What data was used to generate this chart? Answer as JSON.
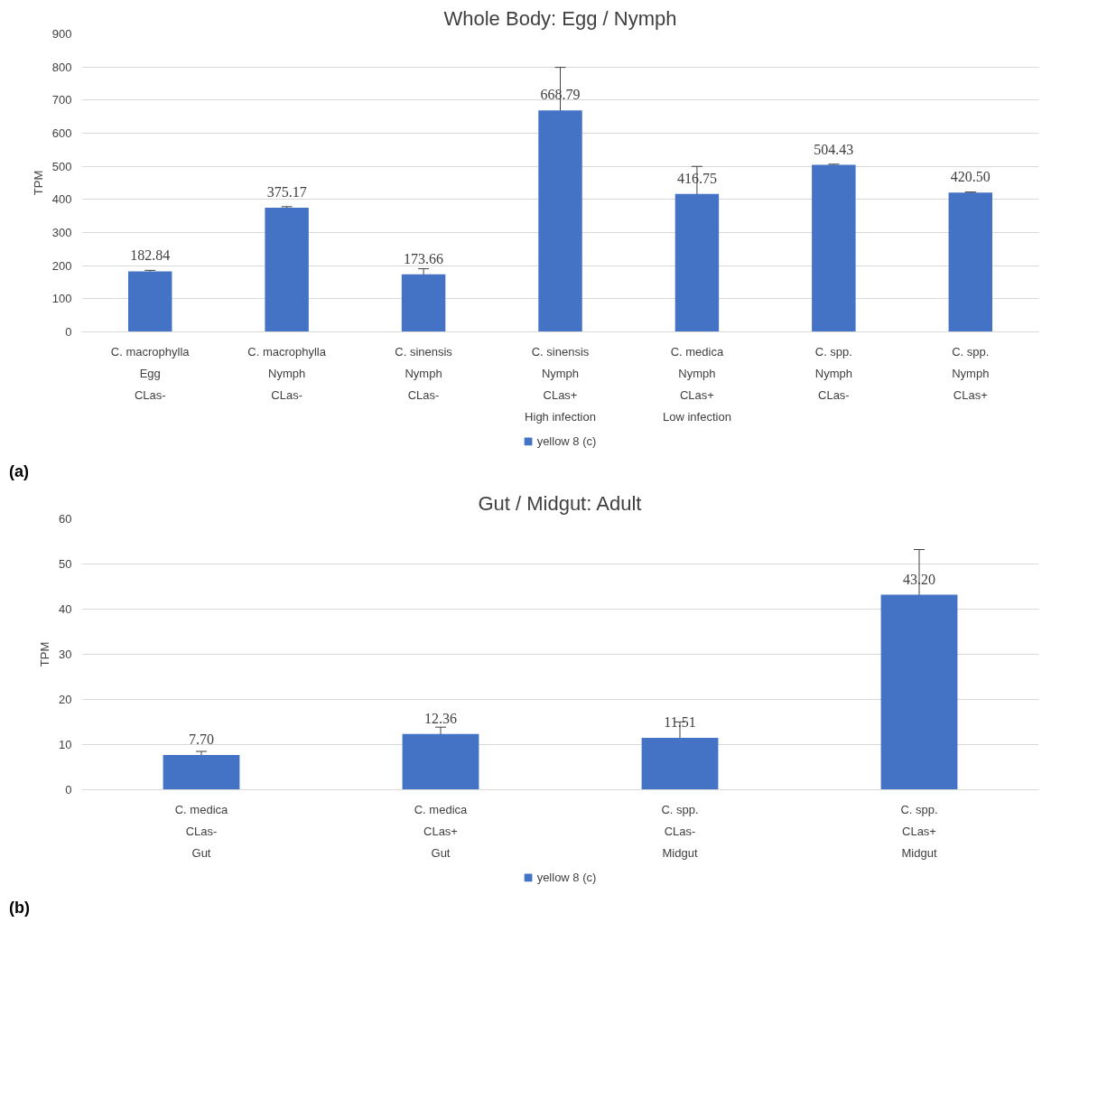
{
  "chart_data": [
    {
      "type": "bar",
      "title": "Whole Body: Egg / Nymph",
      "ylabel": "TPM",
      "categories": [
        "C. macrophylla\nEgg\nCLas-",
        "C. macrophylla\nNymph\nCLas-",
        "C. sinensis\nNymph\nCLas-",
        "C. sinensis\nNymph\nCLas+\nHigh infection",
        "C. medica\nNymph\nCLas+\nLow infection",
        "C. spp.\nNymph\nCLas-",
        "C. spp.\nNymph\nCLas+"
      ],
      "series": [
        {
          "name": "yellow 8 (c)",
          "color": "#4472c4",
          "values": [
            182.84,
            375.17,
            173.66,
            668.79,
            416.75,
            504.43,
            420.5
          ],
          "value_labels": [
            "182.84",
            "375.17",
            "173.66",
            "668.79",
            "416.75",
            "504.43",
            "420.50"
          ],
          "errors": [
            3,
            3,
            17,
            130,
            83,
            2,
            2
          ]
        }
      ],
      "ylim": [
        0,
        900
      ],
      "yticks": [
        0,
        100,
        200,
        300,
        400,
        500,
        600,
        700,
        800,
        900
      ],
      "grid": "y",
      "legend": "bottom",
      "annotations": [
        "(a)"
      ]
    },
    {
      "type": "bar",
      "title": "Gut / Midgut: Adult",
      "ylabel": "TPM",
      "categories": [
        "C. medica\nCLas-\nGut",
        "C. medica\nCLas+\nGut",
        "C. spp.\nCLas-\nMidgut",
        "C. spp.\nCLas+\nMidgut"
      ],
      "series": [
        {
          "name": "yellow 8 (c)",
          "color": "#4472c4",
          "values": [
            7.7,
            12.36,
            11.51,
            43.2
          ],
          "value_labels": [
            "7.70",
            "12.36",
            "11.51",
            "43.20"
          ],
          "errors": [
            0.8,
            1.5,
            3.5,
            10
          ]
        }
      ],
      "ylim": [
        0,
        60
      ],
      "yticks": [
        0,
        10,
        20,
        30,
        40,
        50,
        60
      ],
      "grid": "y",
      "legend": "bottom",
      "annotations": [
        "(b)"
      ]
    }
  ]
}
